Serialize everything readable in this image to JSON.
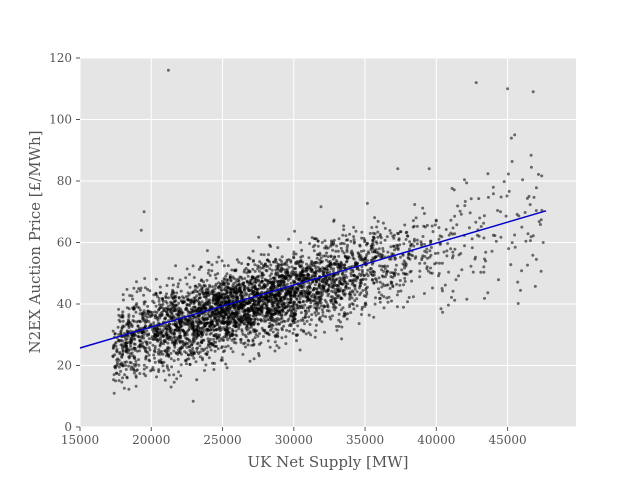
{
  "chart_data": {
    "type": "scatter",
    "title": "",
    "xlabel": "UK Net Supply [MW]",
    "ylabel": "N2EX Auction Price [£/MWh]",
    "xlim": [
      15000,
      49800
    ],
    "ylim": [
      0,
      120
    ],
    "xticks": [
      15000,
      20000,
      25000,
      30000,
      35000,
      40000,
      45000
    ],
    "yticks": [
      0,
      20,
      40,
      60,
      80,
      100,
      120
    ],
    "grid": true,
    "legend": "none",
    "colors": {
      "background": "#e5e5e5",
      "grid": "#ffffff",
      "points": "#000000",
      "fit_line": "#0000cc"
    },
    "series": [
      {
        "kind": "points",
        "point_count_approx": 4000,
        "x_range": [
          17300,
          47700
        ],
        "trend": "price rises roughly linearly with supply; spread ~±10 £/MWh, widening above 40000 MW",
        "sample_points": [
          [
            17400,
            11
          ],
          [
            17500,
            15
          ],
          [
            18200,
            20
          ],
          [
            18500,
            34
          ],
          [
            19000,
            44
          ],
          [
            19300,
            64
          ],
          [
            19500,
            70
          ],
          [
            20000,
            33
          ],
          [
            20500,
            38
          ],
          [
            21200,
            116
          ],
          [
            22000,
            28
          ],
          [
            23000,
            41
          ],
          [
            24000,
            50
          ],
          [
            25000,
            37
          ],
          [
            26000,
            45
          ],
          [
            27000,
            33
          ],
          [
            28000,
            48
          ],
          [
            29000,
            39
          ],
          [
            30000,
            55
          ],
          [
            31000,
            42
          ],
          [
            32000,
            60
          ],
          [
            33000,
            46
          ],
          [
            34000,
            52
          ],
          [
            35000,
            40
          ],
          [
            36000,
            58
          ],
          [
            37000,
            50
          ],
          [
            37300,
            84
          ],
          [
            38000,
            62
          ],
          [
            39000,
            55
          ],
          [
            39500,
            84
          ],
          [
            40000,
            67
          ],
          [
            41000,
            58
          ],
          [
            42000,
            72
          ],
          [
            42800,
            112
          ],
          [
            43000,
            62
          ],
          [
            44000,
            78
          ],
          [
            44500,
            70
          ],
          [
            45000,
            110
          ],
          [
            45500,
            95
          ],
          [
            46000,
            65
          ],
          [
            46500,
            75
          ],
          [
            46800,
            109
          ],
          [
            47500,
            60
          ]
        ]
      },
      {
        "kind": "line",
        "x": [
          15000,
          47700
        ],
        "y": [
          25.7,
          70.3
        ]
      }
    ]
  }
}
